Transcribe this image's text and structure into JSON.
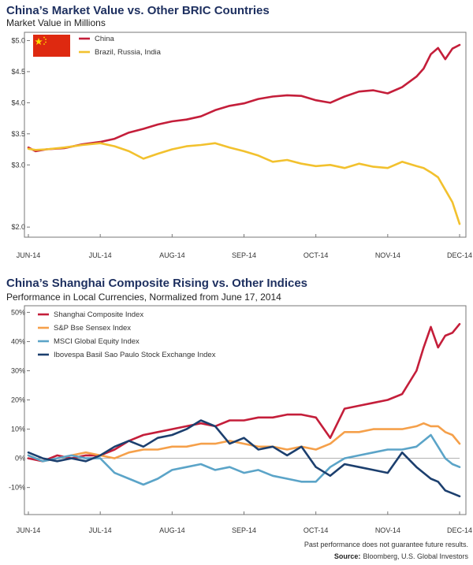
{
  "chart_data": [
    {
      "type": "line",
      "title": "China’s Market Value vs. Other BRIC Countries",
      "subtitle": "Market Value in Millions",
      "x_labels": [
        "JUN-14",
        "JUL-14",
        "AUG-14",
        "SEP-14",
        "OCT-14",
        "NOV-14",
        "DEC-14"
      ],
      "y_ticks": [
        "$5.0",
        "$4.5",
        "$4.0",
        "$3.5",
        "$3.0",
        "$2.0"
      ],
      "y_tick_values": [
        5.0,
        4.5,
        4.0,
        3.5,
        3.0,
        2.0
      ],
      "ylim": [
        1.85,
        5.12
      ],
      "legend_position": "top-left",
      "flag_icon": "china-flag",
      "series": [
        {
          "name": "China",
          "color": "#c41e3a",
          "x": [
            0,
            0.1,
            0.25,
            0.5,
            0.75,
            1,
            1.2,
            1.4,
            1.6,
            1.8,
            2,
            2.2,
            2.4,
            2.6,
            2.8,
            3,
            3.2,
            3.4,
            3.6,
            3.8,
            4,
            4.2,
            4.4,
            4.6,
            4.8,
            5,
            5.2,
            5.4,
            5.5,
            5.6,
            5.7,
            5.8,
            5.9,
            6
          ],
          "y": [
            3.28,
            3.22,
            3.25,
            3.27,
            3.33,
            3.37,
            3.42,
            3.52,
            3.58,
            3.65,
            3.7,
            3.73,
            3.78,
            3.88,
            3.95,
            3.99,
            4.06,
            4.1,
            4.12,
            4.11,
            4.04,
            4.0,
            4.1,
            4.18,
            4.2,
            4.15,
            4.25,
            4.42,
            4.55,
            4.78,
            4.88,
            4.7,
            4.87,
            4.93
          ]
        },
        {
          "name": "Brazil, Russia, India",
          "color": "#f2c12e",
          "x": [
            0,
            0.1,
            0.25,
            0.5,
            0.75,
            1,
            1.2,
            1.4,
            1.6,
            1.8,
            2,
            2.2,
            2.4,
            2.6,
            2.8,
            3,
            3.2,
            3.4,
            3.6,
            3.8,
            4,
            4.2,
            4.4,
            4.6,
            4.8,
            5,
            5.2,
            5.4,
            5.5,
            5.6,
            5.7,
            5.8,
            5.9,
            6
          ],
          "y": [
            3.26,
            3.24,
            3.25,
            3.28,
            3.32,
            3.35,
            3.3,
            3.22,
            3.1,
            3.18,
            3.25,
            3.3,
            3.32,
            3.35,
            3.28,
            3.22,
            3.15,
            3.05,
            3.08,
            3.02,
            2.98,
            3.0,
            2.95,
            3.02,
            2.97,
            2.95,
            3.05,
            2.98,
            2.95,
            2.88,
            2.8,
            2.6,
            2.4,
            2.05
          ]
        }
      ]
    },
    {
      "type": "line",
      "title": "China’s Shanghai Composite Rising vs. Other Indices",
      "subtitle": "Performance in Local Currencies, Normalized from June 17, 2014",
      "x_labels": [
        "JUN-14",
        "JUL-14",
        "AUG-14",
        "SEP-14",
        "OCT-14",
        "NOV-14",
        "DEC-14"
      ],
      "y_ticks": [
        "50%",
        "40%",
        "30%",
        "20%",
        "10%",
        "0%",
        "-10%"
      ],
      "y_tick_values": [
        50,
        40,
        30,
        20,
        10,
        0,
        -10
      ],
      "ylim": [
        -19,
        52
      ],
      "legend_position": "top-left",
      "series": [
        {
          "name": "Shanghai Composite Index",
          "color": "#c41e3a",
          "x": [
            0,
            0.2,
            0.4,
            0.6,
            0.8,
            1,
            1.2,
            1.4,
            1.6,
            1.8,
            2,
            2.2,
            2.4,
            2.6,
            2.8,
            3,
            3.2,
            3.4,
            3.6,
            3.8,
            4,
            4.2,
            4.4,
            4.6,
            4.8,
            5,
            5.2,
            5.4,
            5.5,
            5.6,
            5.7,
            5.8,
            5.9,
            6
          ],
          "y": [
            0,
            -1,
            1,
            0,
            1,
            1,
            3,
            6,
            8,
            9,
            10,
            11,
            12,
            11,
            13,
            13,
            14,
            14,
            15,
            15,
            14,
            7,
            17,
            18,
            19,
            20,
            22,
            30,
            38,
            45,
            38,
            42,
            43,
            46
          ]
        },
        {
          "name": "S&P Bse Sensex Index",
          "color": "#f5a04a",
          "x": [
            0,
            0.2,
            0.4,
            0.6,
            0.8,
            1,
            1.2,
            1.4,
            1.6,
            1.8,
            2,
            2.2,
            2.4,
            2.6,
            2.8,
            3,
            3.2,
            3.4,
            3.6,
            3.8,
            4,
            4.2,
            4.4,
            4.6,
            4.8,
            5,
            5.2,
            5.4,
            5.5,
            5.6,
            5.7,
            5.8,
            5.9,
            6
          ],
          "y": [
            1,
            -1,
            0,
            1,
            2,
            1,
            0,
            2,
            3,
            3,
            4,
            4,
            5,
            5,
            6,
            5,
            4,
            4,
            3,
            4,
            3,
            5,
            9,
            9,
            10,
            10,
            10,
            11,
            12,
            11,
            11,
            9,
            8,
            5
          ]
        },
        {
          "name": "MSCI Global Equity Index",
          "color": "#5ba4c8",
          "x": [
            0,
            0.2,
            0.4,
            0.6,
            0.8,
            1,
            1.2,
            1.4,
            1.6,
            1.8,
            2,
            2.2,
            2.4,
            2.6,
            2.8,
            3,
            3.2,
            3.4,
            3.6,
            3.8,
            4,
            4.2,
            4.4,
            4.6,
            4.8,
            5,
            5.2,
            5.4,
            5.5,
            5.6,
            5.7,
            5.8,
            5.9,
            6
          ],
          "y": [
            1,
            -1,
            0,
            1,
            0,
            0,
            -5,
            -7,
            -9,
            -7,
            -4,
            -3,
            -2,
            -4,
            -3,
            -5,
            -4,
            -6,
            -7,
            -8,
            -8,
            -3,
            0,
            1,
            2,
            3,
            3,
            4,
            6,
            8,
            4,
            0,
            -2,
            -3
          ]
        },
        {
          "name": "Ibovespa Basil Sao Paulo Stock Exchange Index",
          "color": "#1c3f6e",
          "x": [
            0,
            0.2,
            0.4,
            0.6,
            0.8,
            1,
            1.2,
            1.4,
            1.6,
            1.8,
            2,
            2.2,
            2.4,
            2.6,
            2.8,
            3,
            3.2,
            3.4,
            3.6,
            3.8,
            4,
            4.2,
            4.4,
            4.6,
            4.8,
            5,
            5.2,
            5.4,
            5.5,
            5.6,
            5.7,
            5.8,
            5.9,
            6
          ],
          "y": [
            2,
            0,
            -1,
            0,
            -1,
            1,
            4,
            6,
            4,
            7,
            8,
            10,
            13,
            11,
            5,
            7,
            3,
            4,
            1,
            4,
            -3,
            -6,
            -2,
            -3,
            -4,
            -5,
            2,
            -3,
            -5,
            -7,
            -8,
            -11,
            -12,
            -13
          ]
        }
      ]
    }
  ],
  "footer": {
    "disclaimer": "Past performance does not guarantee future results.",
    "source_label": "Source:",
    "source_text": "Bloomberg, U.S. Global Investors"
  }
}
